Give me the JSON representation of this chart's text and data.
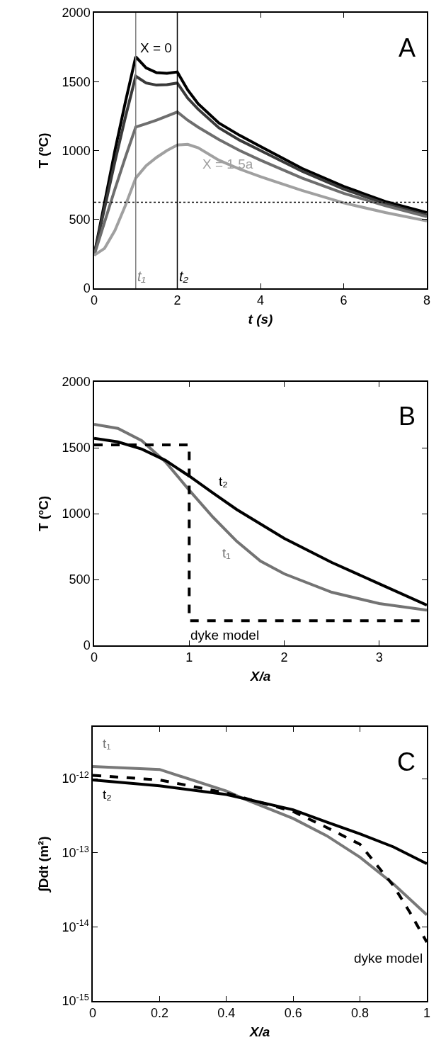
{
  "chart_data": [
    {
      "type": "line",
      "xlabel": "t (s)",
      "ylabel": "T (ºC)",
      "xlim": [
        0,
        8
      ],
      "xticks": [
        0,
        2,
        4,
        6,
        8
      ],
      "ylim": [
        0,
        2000
      ],
      "yticks": [
        0,
        500,
        1000,
        1500,
        2000
      ],
      "legend": false,
      "marker": "none",
      "x": [
        0,
        0.25,
        0.5,
        0.75,
        1,
        1.25,
        1.5,
        1.75,
        2,
        2.25,
        2.5,
        3,
        3.5,
        4,
        5,
        6,
        7,
        8
      ],
      "series": [
        {
          "name": "X = 0",
          "color": "#000000",
          "values": [
            240,
            620,
            1000,
            1350,
            1680,
            1600,
            1565,
            1560,
            1570,
            1440,
            1340,
            1200,
            1110,
            1030,
            870,
            740,
            630,
            550
          ]
        },
        {
          "color": "#3a3a3a",
          "values": [
            240,
            580,
            920,
            1240,
            1540,
            1490,
            1475,
            1478,
            1490,
            1380,
            1300,
            1165,
            1075,
            1000,
            850,
            720,
            615,
            530
          ]
        },
        {
          "color": "#6e6e6e",
          "values": [
            240,
            480,
            720,
            950,
            1170,
            1195,
            1220,
            1250,
            1280,
            1220,
            1170,
            1080,
            1000,
            930,
            800,
            690,
            600,
            520
          ]
        },
        {
          "name": "X = 1.5a",
          "color": "#a0a0a0",
          "values": [
            240,
            290,
            420,
            600,
            800,
            890,
            950,
            1000,
            1040,
            1045,
            1020,
            930,
            865,
            810,
            710,
            620,
            550,
            490
          ]
        }
      ],
      "ref_lines": [
        {
          "axis": "y",
          "value": 625,
          "color": "#000000",
          "line_style": "dotted"
        },
        {
          "axis": "x",
          "value": 1,
          "label": "t₁",
          "color": "#808080",
          "line_style": "solid"
        },
        {
          "axis": "x",
          "value": 2,
          "label": "t₂",
          "color": "#000000",
          "line_style": "solid"
        }
      ],
      "annotations": [
        "A"
      ]
    },
    {
      "type": "line",
      "xlabel": "X/a",
      "ylabel": "T (ºC)",
      "xlim": [
        0,
        3.5
      ],
      "xticks": [
        0,
        1,
        2,
        3
      ],
      "ylim": [
        0,
        2000
      ],
      "yticks": [
        0,
        500,
        1000,
        1500,
        2000
      ],
      "legend": false,
      "marker": "none",
      "series": [
        {
          "name": "t₁",
          "color": "#737373",
          "x": [
            0,
            0.25,
            0.5,
            0.75,
            1,
            1.25,
            1.5,
            1.75,
            2,
            2.5,
            3,
            3.5
          ],
          "values": [
            1677,
            1647,
            1554,
            1393,
            1178,
            973,
            790,
            640,
            543,
            403,
            317,
            267
          ]
        },
        {
          "name": "t₂",
          "color": "#000000",
          "x": [
            0,
            0.25,
            0.5,
            0.75,
            1,
            1.25,
            1.5,
            2,
            2.5,
            3,
            3.5
          ],
          "values": [
            1572,
            1544,
            1490,
            1404,
            1285,
            1156,
            1031,
            812,
            629,
            467,
            306
          ]
        },
        {
          "name": "dyke model",
          "type": "step",
          "color": "#000000",
          "line_style": "dashed",
          "x": [
            0,
            1,
            3.5
          ],
          "values": [
            1522,
            187,
            187
          ]
        }
      ],
      "annotations": [
        "B"
      ]
    },
    {
      "type": "line",
      "xlabel": "X/a",
      "ylabel": "∫Ddt (m²)",
      "log": "y",
      "xlim": [
        0,
        1
      ],
      "xticks": [
        0,
        0.2,
        0.4,
        0.6,
        0.8,
        1
      ],
      "ylim": [
        1e-15,
        5e-12
      ],
      "yticks": [
        {
          "value": 1e-15,
          "label": "10$^{-15}$"
        },
        {
          "value": 1e-14,
          "label": "10$^{-14}$"
        },
        {
          "value": 1e-13,
          "label": "10$^{-13}$"
        },
        {
          "value": 1e-12,
          "label": "10$^{-12}$"
        }
      ],
      "legend": false,
      "marker": "none",
      "series": [
        {
          "name": "t₁",
          "color": "#787878",
          "x": [
            0,
            0.2,
            0.4,
            0.45,
            0.6,
            0.7,
            0.8,
            0.9,
            1
          ],
          "values": [
            1.46e-12,
            1.33e-12,
            6.8e-13,
            5.4e-13,
            2.9e-13,
            1.7e-13,
            8.7e-14,
            3.8e-14,
            1.45e-14
          ]
        },
        {
          "name": "t₂",
          "color": "#000000",
          "x": [
            0,
            0.2,
            0.4,
            0.6,
            0.7,
            0.8,
            0.9,
            1
          ],
          "values": [
            9.6e-13,
            8e-13,
            6.1e-13,
            3.8e-13,
            2.6e-13,
            1.8e-13,
            1.2e-13,
            7.1e-14
          ]
        },
        {
          "name": "dyke model",
          "color": "#000000",
          "line_style": "dashed",
          "x": [
            0,
            0.2,
            0.4,
            0.6,
            0.7,
            0.8,
            0.9,
            0.95,
            1
          ],
          "values": [
            1.11e-12,
            9.6e-13,
            6.4e-13,
            3.6e-13,
            2.2e-13,
            1.3e-13,
            3.6e-14,
            1.55e-14,
            6.2e-15
          ]
        }
      ],
      "annotations": [
        "C"
      ]
    }
  ]
}
